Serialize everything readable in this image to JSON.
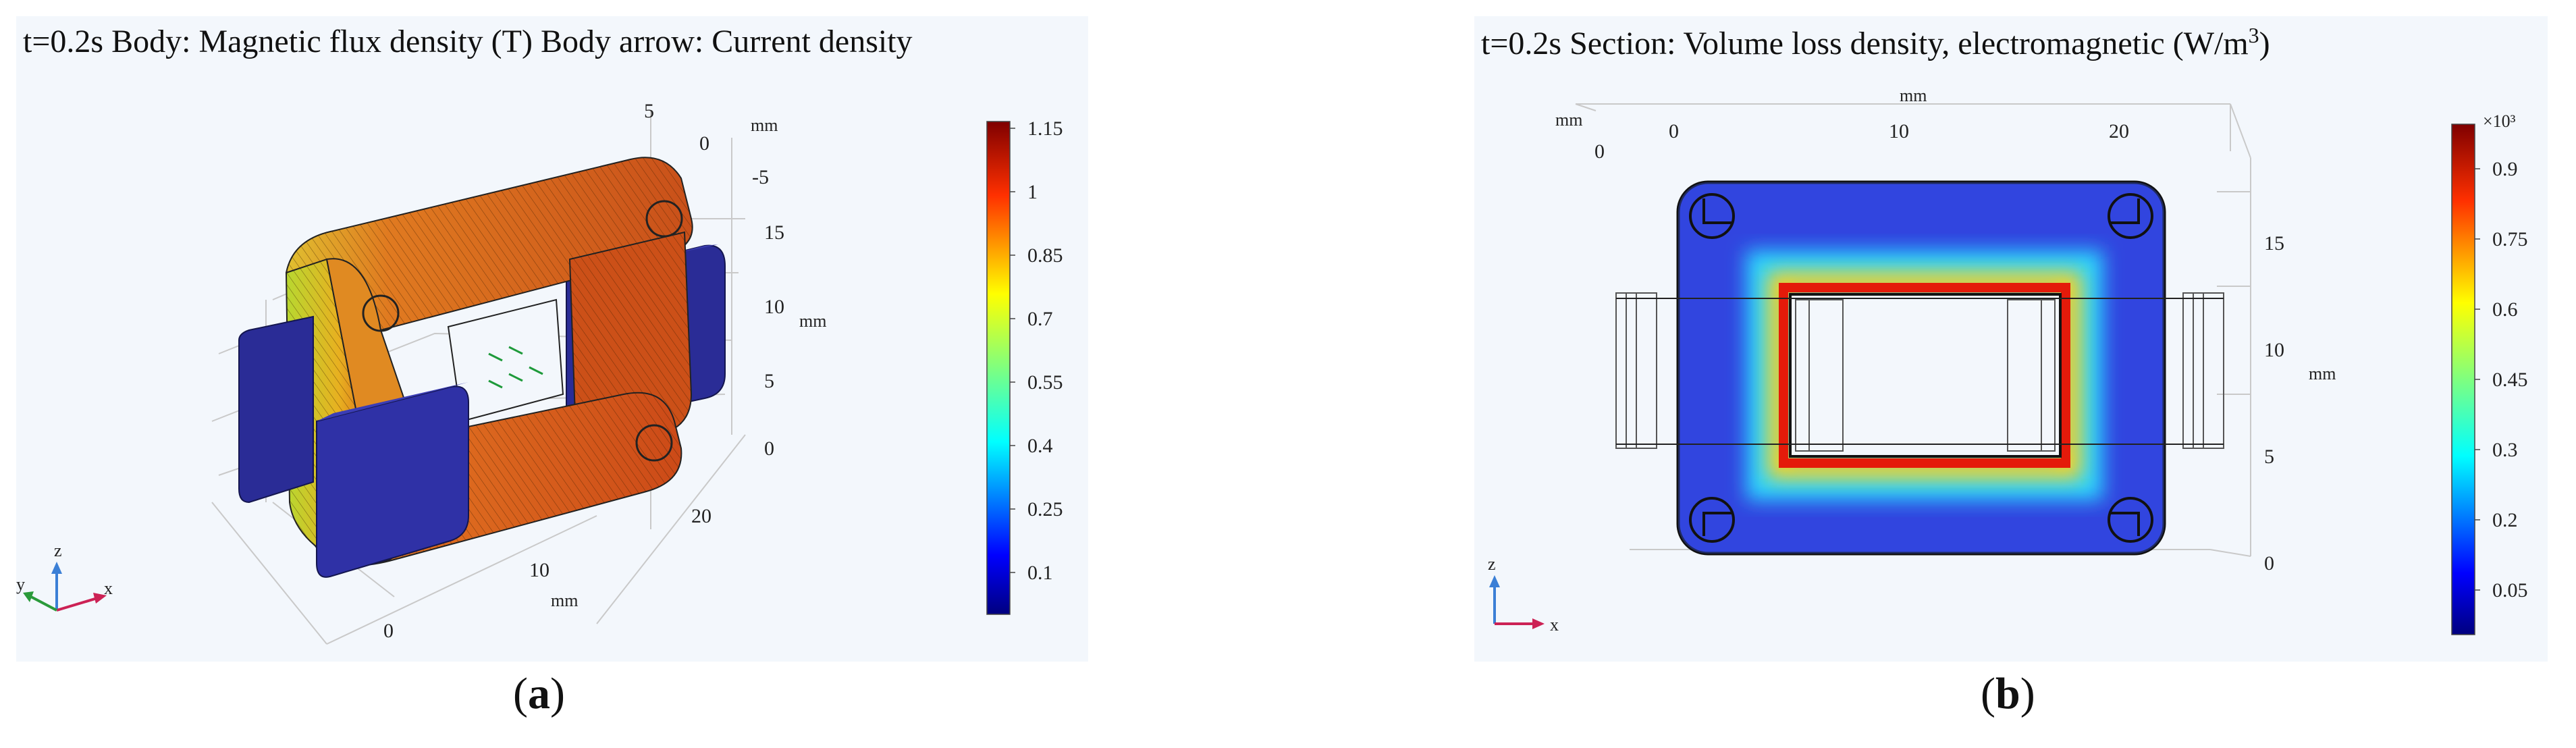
{
  "panel_a": {
    "title": "t=0.2s  Body: Magnetic flux density (T) Body arrow: Current density",
    "axis_z_ticks": [
      "5",
      "0",
      "-5"
    ],
    "axis_vertical_ticks": [
      "15",
      "10",
      "5",
      "0"
    ],
    "axis_x_ticks": [
      "20",
      "10",
      "0"
    ],
    "unit_label": "mm",
    "triad": {
      "z": "z",
      "y": "y",
      "x": "x"
    },
    "colorbar_ticks": [
      "1.15",
      "1",
      "0.85",
      "0.7",
      "0.55",
      "0.4",
      "0.25",
      "0.1"
    ],
    "label": "a"
  },
  "panel_b": {
    "title_main": "t=0.2s  Section: Volume loss density, electromagnetic (W/m",
    "title_sup": "3",
    "title_close": ")",
    "axis_top_ticks": [
      "0",
      "10",
      "20"
    ],
    "axis_left_tick": "0",
    "axis_right_ticks": [
      "15",
      "10",
      "5",
      "0"
    ],
    "unit_label": "mm",
    "triad": {
      "z": "z",
      "x": "x"
    },
    "colorbar_multiplier": "×10³",
    "colorbar_ticks": [
      "0.9",
      "0.75",
      "0.6",
      "0.45",
      "0.3",
      "0.2",
      "0.05"
    ],
    "label": "b"
  },
  "colors": {
    "jet": [
      "#00007f",
      "#0000ff",
      "#007fff",
      "#00ffff",
      "#7fff7f",
      "#ffff00",
      "#ff7f00",
      "#ff0000",
      "#7f0000"
    ],
    "coil": "#2d2f9a",
    "core": "#d95f1c",
    "panel_bg": "#f3f7fc"
  }
}
